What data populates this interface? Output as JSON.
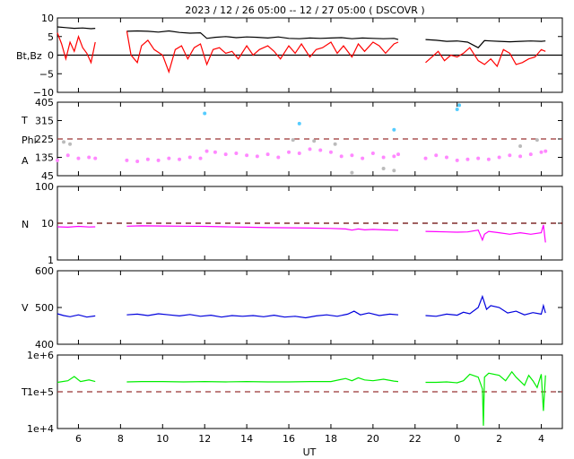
{
  "chart_data": {
    "type": "line",
    "title": "2023 / 12 / 26   05:00 -- 12 / 27   05:00 ( DSCOVR )",
    "xlabel": "UT",
    "x_range_hours": [
      5,
      29
    ],
    "x_ticks": [
      {
        "h": 6,
        "label": "6"
      },
      {
        "h": 8,
        "label": "8"
      },
      {
        "h": 10,
        "label": "10"
      },
      {
        "h": 12,
        "label": "12"
      },
      {
        "h": 14,
        "label": "14"
      },
      {
        "h": 16,
        "label": "16"
      },
      {
        "h": 18,
        "label": "18"
      },
      {
        "h": 20,
        "label": "20"
      },
      {
        "h": 22,
        "label": "22"
      },
      {
        "h": 24,
        "label": "0"
      },
      {
        "h": 26,
        "label": "2"
      },
      {
        "h": 28,
        "label": "4"
      }
    ],
    "panels": [
      {
        "id": "mag",
        "ylabel": "Bt,Bz",
        "ylim": [
          -10,
          10
        ],
        "yticks": [
          "10",
          "5",
          "0",
          "−5",
          "−10"
        ],
        "ytick_values": [
          10,
          5,
          0,
          -5,
          -10
        ],
        "ref_line": {
          "value": 0,
          "style": "solid",
          "color": "#000000"
        },
        "series": [
          {
            "color": "#000000",
            "x": [
              5,
              5.4,
              5.8,
              6.2,
              6.6,
              6.8,
              8.3,
              8.8,
              9.3,
              9.8,
              10.3,
              10.8,
              11.3,
              11.8,
              12.1,
              12.5,
              13,
              13.5,
              14,
              14.5,
              15,
              15.5,
              16,
              16.5,
              17,
              17.5,
              18,
              18.5,
              19,
              19.5,
              20,
              20.5,
              21,
              21.2,
              22.5,
              23,
              23.5,
              24,
              24.5,
              25,
              25.3,
              25.6,
              26,
              26.5,
              27,
              27.5,
              28,
              28.2
            ],
            "y": [
              7.6,
              7.4,
              7.2,
              7.3,
              7.1,
              7.2,
              6.4,
              6.5,
              6.4,
              6.2,
              6.5,
              6.1,
              5.9,
              6.0,
              4.5,
              4.8,
              5.0,
              4.7,
              4.9,
              4.8,
              4.6,
              4.9,
              4.5,
              4.4,
              4.6,
              4.5,
              4.6,
              4.7,
              4.4,
              4.6,
              4.5,
              4.4,
              4.5,
              4.2,
              4.2,
              4.0,
              3.7,
              3.8,
              3.5,
              2.0,
              3.9,
              3.8,
              3.7,
              3.6,
              3.7,
              3.8,
              3.7,
              3.8
            ]
          },
          {
            "color": "#ff0000",
            "x": [
              5,
              5.2,
              5.4,
              5.6,
              5.8,
              6,
              6.2,
              6.4,
              6.6,
              6.8,
              8.3,
              8.5,
              8.8,
              9,
              9.3,
              9.6,
              10,
              10.3,
              10.6,
              10.9,
              11.2,
              11.5,
              11.8,
              12.1,
              12.4,
              12.7,
              13,
              13.3,
              13.6,
              14,
              14.3,
              14.6,
              15,
              15.3,
              15.6,
              16,
              16.3,
              16.6,
              17,
              17.3,
              17.6,
              18,
              18.3,
              18.6,
              19,
              19.3,
              19.6,
              20,
              20.3,
              20.6,
              21,
              21.2,
              22.5,
              22.8,
              23.1,
              23.4,
              23.7,
              24,
              24.3,
              24.6,
              25,
              25.3,
              25.6,
              25.9,
              26.2,
              26.5,
              26.8,
              27.1,
              27.4,
              27.7,
              28,
              28.2
            ],
            "y": [
              6.0,
              3.0,
              -1.0,
              3.5,
              1.0,
              5.0,
              2.0,
              0.5,
              -2.0,
              3.5,
              6.5,
              0.0,
              -2.0,
              2.5,
              4.0,
              1.5,
              0.0,
              -4.5,
              1.5,
              2.5,
              -1.0,
              2.0,
              3.0,
              -2.5,
              1.5,
              2.0,
              0.5,
              1.0,
              -1.0,
              2.5,
              0.0,
              1.5,
              2.5,
              1.0,
              -1.0,
              2.5,
              0.5,
              3.0,
              -0.5,
              1.5,
              2.0,
              3.5,
              0.5,
              2.5,
              -0.5,
              3.0,
              1.0,
              3.5,
              2.5,
              0.5,
              3.0,
              3.5,
              -2.0,
              -0.5,
              1.0,
              -1.5,
              0.0,
              -0.5,
              0.5,
              2.0,
              -1.5,
              -2.5,
              -1.0,
              -3.0,
              1.5,
              0.5,
              -2.5,
              -2.0,
              -1.0,
              -0.5,
              1.5,
              1.0
            ]
          }
        ]
      },
      {
        "id": "angles",
        "ylabels": [
          "T",
          "Phi",
          "A"
        ],
        "ylim": [
          45,
          405
        ],
        "yticks": [
          "405",
          "315",
          "225",
          "135",
          "45"
        ],
        "ytick_values": [
          405,
          315,
          225,
          135,
          45
        ],
        "ref_line": {
          "value": 225,
          "style": "dashed",
          "color": "#993333"
        },
        "series": [
          {
            "name": "",
            "color": "#ff88ff",
            "x": [
              5,
              5.5,
              6,
              6.5,
              6.8,
              8.3,
              8.8,
              9.3,
              9.8,
              10.3,
              10.8,
              11.3,
              11.8,
              12.1,
              12.5,
              13,
              13.5,
              14,
              14.5,
              15,
              15.5,
              16,
              16.5,
              17,
              17.5,
              18,
              18.5,
              19,
              19.5,
              20,
              20.5,
              21,
              21.2,
              22.5,
              23,
              23.5,
              24,
              24.5,
              25,
              25.5,
              26,
              26.5,
              27,
              27.5,
              28,
              28.2
            ],
            "y": [
              120,
              145,
              130,
              135,
              130,
              120,
              115,
              125,
              120,
              130,
              125,
              135,
              130,
              165,
              160,
              150,
              155,
              145,
              140,
              150,
              135,
              160,
              155,
              175,
              170,
              160,
              140,
              145,
              130,
              155,
              135,
              140,
              150,
              130,
              145,
              135,
              120,
              125,
              130,
              125,
              135,
              145,
              140,
              150,
              160,
              165
            ]
          },
          {
            "name": "",
            "color": "#55ccff",
            "x": [
              12.0,
              16.5,
              21.0,
              24.0,
              24.1
            ],
            "y": [
              350,
              300,
              270,
              370,
              390
            ]
          },
          {
            "name": "",
            "color": "#bbbbbb",
            "x": [
              5.3,
              5.6,
              16.2,
              17.2,
              18.2,
              19.0,
              20.5,
              21.0,
              27.0,
              27.8
            ],
            "y": [
              210,
              200,
              220,
              215,
              200,
              60,
              80,
              70,
              190,
              220
            ]
          }
        ]
      },
      {
        "id": "density",
        "ylabel": "N",
        "ylim": [
          1,
          100
        ],
        "scale": "log",
        "yticks": [
          "100",
          "10",
          "1"
        ],
        "ytick_values": [
          100,
          10,
          1
        ],
        "ref_line": {
          "value": 10,
          "style": "dashed",
          "color": "#660000"
        },
        "series": [
          {
            "color": "#ff00ff",
            "x": [
              5,
              5.5,
              6,
              6.5,
              6.8,
              8.3,
              9,
              10,
              11,
              12,
              13,
              14,
              15,
              16,
              17,
              18,
              18.7,
              19,
              19.3,
              19.6,
              20,
              20.5,
              21,
              21.2,
              22.5,
              23,
              23.5,
              24,
              24.5,
              25,
              25.2,
              25.3,
              25.5,
              26,
              26.5,
              27,
              27.5,
              28,
              28.1,
              28.2
            ],
            "y": [
              8.0,
              7.8,
              8.2,
              7.9,
              8.0,
              8.3,
              8.5,
              8.4,
              8.3,
              8.2,
              8.0,
              7.8,
              7.6,
              7.5,
              7.4,
              7.2,
              7.0,
              6.5,
              7.0,
              6.6,
              6.8,
              6.6,
              6.5,
              6.4,
              6.0,
              5.9,
              5.8,
              5.7,
              5.8,
              6.5,
              3.5,
              5.0,
              6.0,
              5.5,
              5.0,
              5.5,
              5.0,
              5.5,
              9.0,
              3.0
            ]
          }
        ]
      },
      {
        "id": "velocity",
        "ylabel": "V",
        "ylim": [
          400,
          600
        ],
        "yticks": [
          "600",
          "500",
          "400"
        ],
        "ytick_values": [
          600,
          500,
          400
        ],
        "series": [
          {
            "color": "#0000dd",
            "x": [
              5,
              5.3,
              5.6,
              6,
              6.4,
              6.8,
              8.3,
              8.8,
              9.3,
              9.8,
              10.3,
              10.8,
              11.3,
              11.8,
              12.3,
              12.8,
              13.3,
              13.8,
              14.3,
              14.8,
              15.3,
              15.8,
              16.3,
              16.8,
              17.3,
              17.8,
              18.3,
              18.8,
              19.1,
              19.4,
              19.8,
              20.3,
              20.8,
              21.2,
              22.5,
              23,
              23.5,
              24,
              24.3,
              24.6,
              25,
              25.2,
              25.4,
              25.6,
              26,
              26.4,
              26.8,
              27.2,
              27.6,
              28,
              28.1,
              28.2
            ],
            "y": [
              483,
              478,
              475,
              480,
              474,
              477,
              480,
              482,
              478,
              483,
              480,
              477,
              481,
              476,
              479,
              474,
              478,
              476,
              478,
              475,
              479,
              474,
              476,
              472,
              477,
              480,
              476,
              482,
              490,
              480,
              485,
              478,
              482,
              480,
              478,
              476,
              482,
              479,
              487,
              483,
              500,
              530,
              495,
              505,
              500,
              485,
              490,
              480,
              486,
              482,
              505,
              485
            ]
          }
        ]
      },
      {
        "id": "temperature",
        "ylabel": "T",
        "ylim": [
          10000,
          1000000
        ],
        "scale": "log",
        "yticks": [
          "1e+6",
          "1e+5",
          "1e+4"
        ],
        "ytick_values": [
          1000000,
          100000,
          10000
        ],
        "ref_line": {
          "value": 100000,
          "style": "dashed",
          "color": "#993333"
        },
        "series": [
          {
            "color": "#00ee00",
            "x": [
              5,
              5.5,
              5.8,
              6.1,
              6.5,
              6.8,
              8.3,
              9,
              10,
              11,
              12,
              13,
              14,
              15,
              16,
              17,
              18,
              18.7,
              19,
              19.3,
              19.6,
              20,
              20.5,
              21,
              21.2,
              22.5,
              23,
              23.5,
              24,
              24.3,
              24.6,
              25,
              25.2,
              25.25,
              25.3,
              25.5,
              26,
              26.3,
              26.6,
              26.8,
              27.2,
              27.4,
              27.6,
              27.8,
              28,
              28.1,
              28.2
            ],
            "y": [
              180000,
              200000,
              260000,
              190000,
              210000,
              190000,
              185000,
              190000,
              190000,
              185000,
              190000,
              185000,
              190000,
              185000,
              185000,
              190000,
              190000,
              230000,
              200000,
              240000,
              210000,
              200000,
              220000,
              195000,
              190000,
              180000,
              180000,
              185000,
              175000,
              200000,
              300000,
              250000,
              120000,
              12000,
              250000,
              320000,
              280000,
              200000,
              350000,
              250000,
              150000,
              280000,
              200000,
              130000,
              300000,
              30000,
              280000
            ]
          }
        ]
      }
    ]
  }
}
